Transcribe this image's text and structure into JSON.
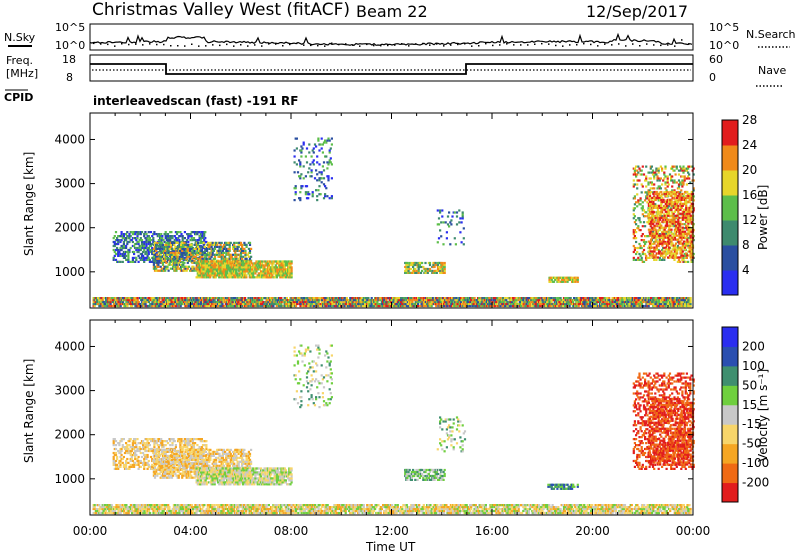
{
  "header": {
    "title": "Christmas Valley West (fitACF)",
    "beam": "Beam 22",
    "date": "12/Sep/2017"
  },
  "top_panels": {
    "nsky_label": "N.Sky",
    "nsearch_label": "N.Search",
    "noise_ticks": [
      "10^5",
      "10^0"
    ],
    "freq_label": "Freq.",
    "freq_unit": "[MHz]",
    "freq_ticks": [
      "18",
      "8"
    ],
    "nave_label": "Nave",
    "nave_ticks": [
      "60",
      "0"
    ],
    "cpid_label": "CPID",
    "cpid_text": "interleavedscan (fast) -191 RF"
  },
  "chart_data": [
    {
      "type": "heatmap",
      "name": "power",
      "ylabel": "Slant Range [km]",
      "yticks": [
        1000,
        2000,
        3000,
        4000
      ],
      "ylim": [
        180,
        4600
      ],
      "xlim": [
        0,
        24
      ],
      "colorbar": {
        "label": "Power [dB]",
        "ticks": [
          "4",
          "8",
          "12",
          "16",
          "20",
          "24",
          "28"
        ],
        "colors": [
          "#2a2ef0",
          "#2a4fa0",
          "#3e8a6e",
          "#5dbe4a",
          "#e7d62a",
          "#f08a1a",
          "#e21d1d"
        ]
      },
      "blobs": [
        {
          "t0": 0.1,
          "t1": 23.9,
          "r0": 200,
          "r1": 420,
          "density": 0.85,
          "c": [
            1,
            6
          ]
        },
        {
          "t0": 0.9,
          "t1": 4.6,
          "r0": 1200,
          "r1": 1900,
          "density": 0.45,
          "c": [
            0,
            3
          ]
        },
        {
          "t0": 2.5,
          "t1": 6.4,
          "r0": 1000,
          "r1": 1650,
          "density": 0.55,
          "c": [
            1,
            5
          ]
        },
        {
          "t0": 4.2,
          "t1": 8.0,
          "r0": 850,
          "r1": 1250,
          "density": 0.75,
          "c": [
            3,
            5
          ]
        },
        {
          "t0": 8.1,
          "t1": 9.6,
          "r0": 2600,
          "r1": 4000,
          "density": 0.12,
          "c": [
            0,
            3
          ]
        },
        {
          "t0": 12.5,
          "t1": 14.1,
          "r0": 950,
          "r1": 1180,
          "density": 0.55,
          "c": [
            2,
            5
          ]
        },
        {
          "t0": 13.8,
          "t1": 14.9,
          "r0": 1600,
          "r1": 2400,
          "density": 0.12,
          "c": [
            0,
            3
          ]
        },
        {
          "t0": 18.2,
          "t1": 19.4,
          "r0": 750,
          "r1": 850,
          "density": 0.6,
          "c": [
            3,
            5
          ]
        },
        {
          "t0": 21.6,
          "t1": 24.0,
          "r0": 1200,
          "r1": 3400,
          "density": 0.25,
          "c": [
            2,
            6
          ]
        },
        {
          "t0": 22.2,
          "t1": 24.0,
          "r0": 1300,
          "r1": 2800,
          "density": 0.45,
          "c": [
            4,
            6
          ]
        }
      ]
    },
    {
      "type": "heatmap",
      "name": "velocity",
      "ylabel": "Slant Range [km]",
      "xlabel": "Time UT",
      "xticks": [
        "00:00",
        "04:00",
        "08:00",
        "12:00",
        "16:00",
        "20:00",
        "00:00"
      ],
      "yticks": [
        1000,
        2000,
        3000,
        4000
      ],
      "ylim": [
        180,
        4600
      ],
      "xlim": [
        0,
        24
      ],
      "colorbar": {
        "label": "Velocity [m s⁻¹]",
        "ticks": [
          "-200",
          "-100",
          "-50",
          "-15",
          "15",
          "50",
          "100",
          "200"
        ],
        "colors": [
          "#e21d1d",
          "#f06a14",
          "#f5a623",
          "#f7d56a",
          "#c8c8c8",
          "#6fcf3e",
          "#3f8f6f",
          "#2a4fb0",
          "#2a2ef0"
        ]
      },
      "blobs": [
        {
          "t0": 0.1,
          "t1": 23.9,
          "r0": 200,
          "r1": 420,
          "density": 0.7,
          "c": [
            2,
            5
          ]
        },
        {
          "t0": 0.9,
          "t1": 4.6,
          "r0": 1200,
          "r1": 1900,
          "density": 0.4,
          "c": [
            2,
            4
          ]
        },
        {
          "t0": 2.5,
          "t1": 6.4,
          "r0": 1000,
          "r1": 1650,
          "density": 0.55,
          "c": [
            2,
            4
          ]
        },
        {
          "t0": 4.2,
          "t1": 8.0,
          "r0": 850,
          "r1": 1250,
          "density": 0.7,
          "c": [
            3,
            5
          ]
        },
        {
          "t0": 8.1,
          "t1": 9.6,
          "r0": 2600,
          "r1": 4000,
          "density": 0.12,
          "c": [
            3,
            6
          ]
        },
        {
          "t0": 12.5,
          "t1": 14.1,
          "r0": 950,
          "r1": 1180,
          "density": 0.55,
          "c": [
            4,
            6
          ]
        },
        {
          "t0": 13.8,
          "t1": 14.9,
          "r0": 1600,
          "r1": 2400,
          "density": 0.12,
          "c": [
            3,
            6
          ]
        },
        {
          "t0": 18.2,
          "t1": 19.4,
          "r0": 750,
          "r1": 850,
          "density": 0.6,
          "c": [
            5,
            7
          ]
        },
        {
          "t0": 21.6,
          "t1": 24.0,
          "r0": 1200,
          "r1": 3400,
          "density": 0.3,
          "c": [
            0,
            1
          ]
        },
        {
          "t0": 22.2,
          "t1": 24.0,
          "r0": 1300,
          "r1": 2800,
          "density": 0.45,
          "c": [
            0,
            1
          ]
        }
      ]
    }
  ]
}
